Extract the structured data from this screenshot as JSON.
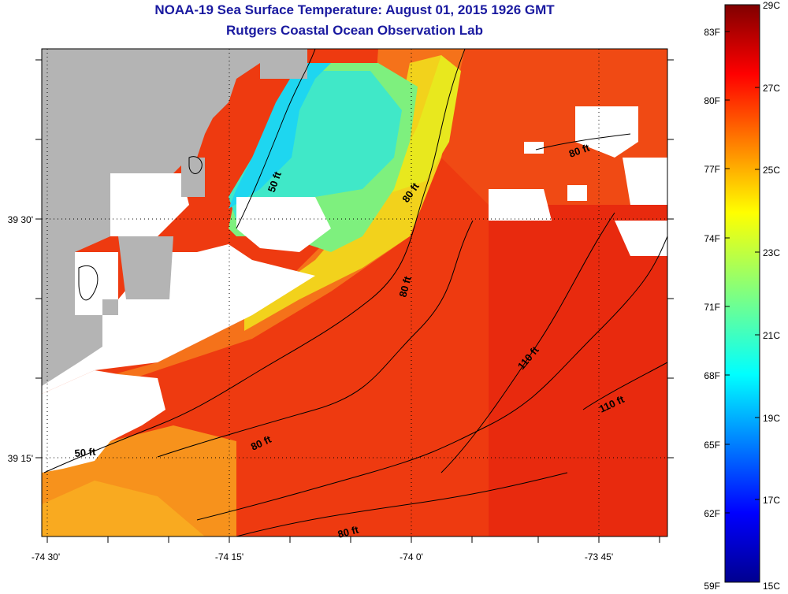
{
  "title": {
    "line1": "NOAA-19 Sea Surface Temperature:  August 01, 2015 1926 GMT",
    "line2": "Rutgers Coastal Ocean Observation Lab"
  },
  "map": {
    "lon_ticks": [
      "-74 30'",
      "-74 15'",
      "-74 0'",
      "-73 45'"
    ],
    "lat_ticks": [
      "39 30'",
      "39 15'"
    ],
    "contour_labels": [
      "50 ft",
      "80 ft",
      "80 ft",
      "80 ft",
      "80 ft",
      "110 ft",
      "110 ft",
      "50 ft",
      "80 ft",
      "80 ft"
    ],
    "land_color": "#b4b4b4",
    "cloud_color": "#ffffff"
  },
  "colorbar": {
    "fahrenheit_labels": [
      "83F",
      "80F",
      "77F",
      "74F",
      "71F",
      "68F",
      "65F",
      "62F",
      "59F"
    ],
    "celsius_labels": [
      "29C",
      "27C",
      "25C",
      "23C",
      "21C",
      "19C",
      "17C",
      "15C"
    ],
    "colormap": "jet",
    "min_c": 15,
    "max_c": 29
  }
}
